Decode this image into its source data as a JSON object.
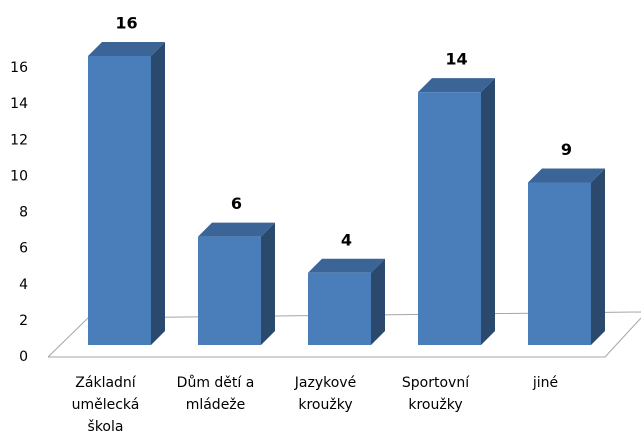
{
  "chart_data": {
    "type": "bar3d",
    "categories": [
      "Základní umělecká škola",
      "Dům dětí a mládeže",
      "Jazykové kroužky",
      "Sportovní kroužky",
      "jiné"
    ],
    "values": [
      16,
      6,
      4,
      14,
      9
    ],
    "color": "#4a7ebb",
    "ylim": [
      0,
      16
    ],
    "yticks": [
      0,
      2,
      4,
      6,
      8,
      10,
      12,
      14,
      16
    ]
  }
}
